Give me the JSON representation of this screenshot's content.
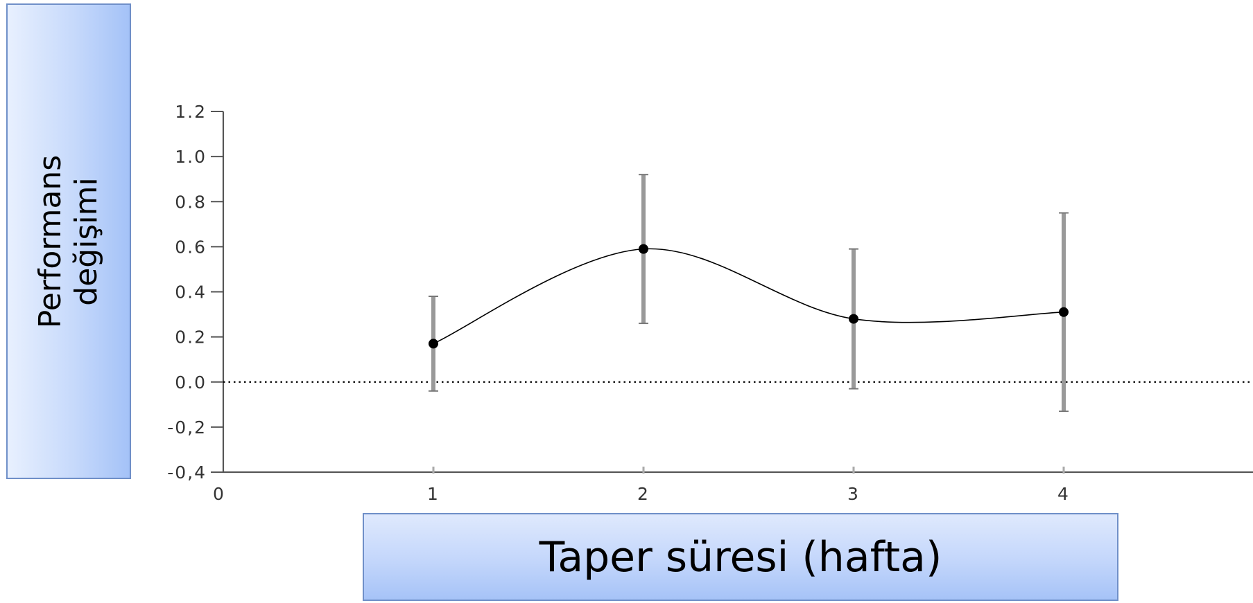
{
  "chart_data": {
    "type": "line",
    "xlabel": "Taper süresi (hafta)",
    "ylabel": "Performans\ndeğişimi",
    "xlim": [
      0,
      4.9
    ],
    "ylim": [
      -0.4,
      1.2
    ],
    "x_ticks": [
      "0",
      "1",
      "2",
      "3",
      "4"
    ],
    "y_ticks": [
      "1.2",
      "1.0",
      "0.8",
      "0.6",
      "0.4",
      "0.2",
      "0.0",
      "-0,2",
      "-0,4"
    ],
    "reference_line": {
      "y": 0.0,
      "style": "dotted"
    },
    "series": [
      {
        "smoothed": true,
        "points": [
          {
            "x": 1,
            "y": 0.17,
            "err_low": -0.04,
            "err_high": 0.38
          },
          {
            "x": 2,
            "y": 0.59,
            "err_low": 0.26,
            "err_high": 0.92
          },
          {
            "x": 3,
            "y": 0.28,
            "err_low": -0.03,
            "err_high": 0.59
          },
          {
            "x": 4,
            "y": 0.31,
            "err_low": -0.13,
            "err_high": 0.75
          }
        ]
      }
    ],
    "colors": {
      "line": "#000000",
      "error_bar": "#999999",
      "axis": "#555555"
    }
  }
}
